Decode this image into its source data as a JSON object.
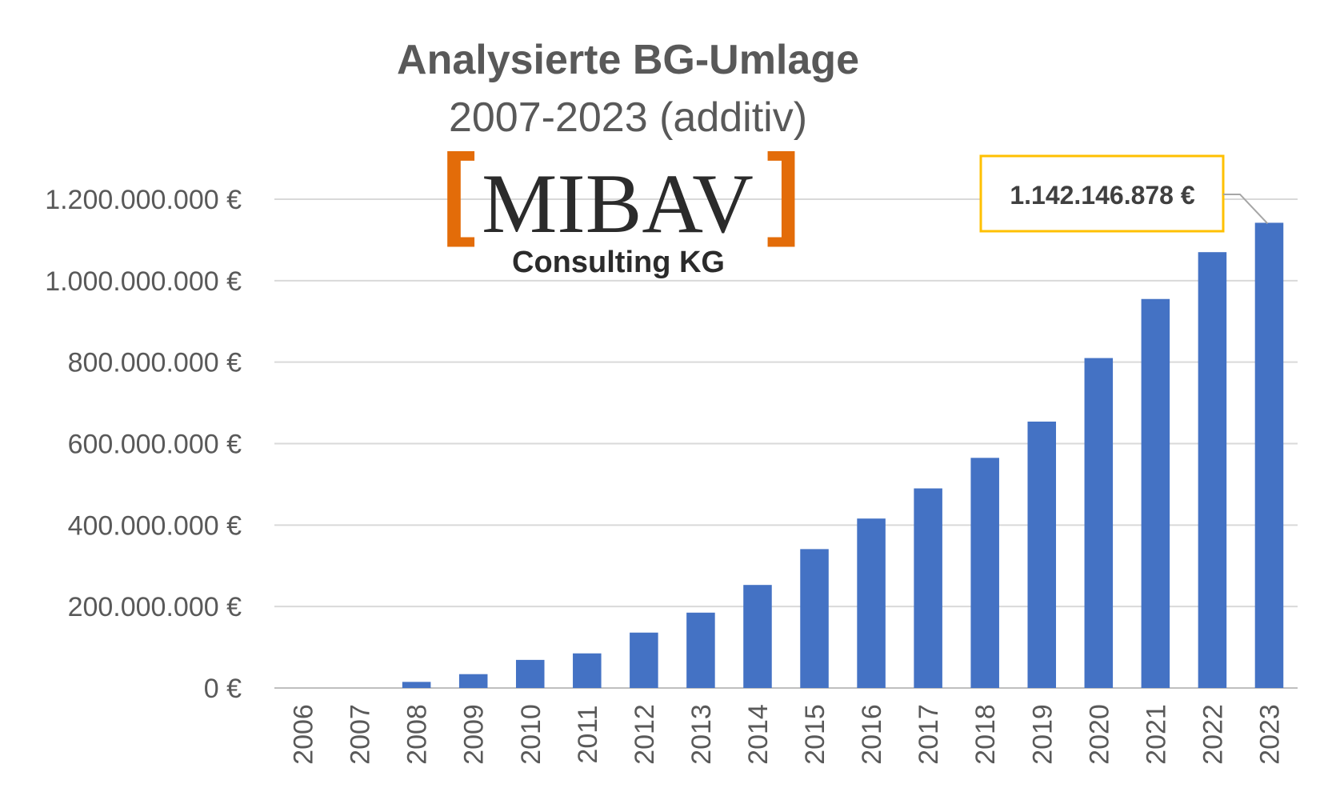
{
  "chart_data": {
    "type": "bar",
    "title": "Analysierte BG-Umlage",
    "subtitle": "2007-2023 (additiv)",
    "categories": [
      "2006",
      "2007",
      "2008",
      "2009",
      "2010",
      "2011",
      "2012",
      "2013",
      "2014",
      "2015",
      "2016",
      "2017",
      "2018",
      "2019",
      "2020",
      "2021",
      "2022",
      "2023"
    ],
    "values": [
      0,
      0,
      15000000,
      34000000,
      69000000,
      85000000,
      136000000,
      185000000,
      253000000,
      341000000,
      416000000,
      490000000,
      565000000,
      654000000,
      810000000,
      955000000,
      1070000000,
      1142146878
    ],
    "ylim": [
      0,
      1200000000
    ],
    "yticks": [
      "0 €",
      "200.000.000 €",
      "400.000.000 €",
      "600.000.000 €",
      "800.000.000 €",
      "1.000.000.000 €",
      "1.200.000.000 €"
    ],
    "ytick_values": [
      0,
      200000000,
      400000000,
      600000000,
      800000000,
      1000000000,
      1200000000
    ],
    "grid": true,
    "legend": "none",
    "bar_color": "#4472C4",
    "annotation": {
      "category": "2023",
      "text": "1.142.146.878 €",
      "border_color": "#FFC000"
    }
  },
  "logo": {
    "bracket_left": "[",
    "name": "MIBAV",
    "bracket_right": "]",
    "sub": "Consulting KG",
    "bracket_color": "#E36C09"
  }
}
